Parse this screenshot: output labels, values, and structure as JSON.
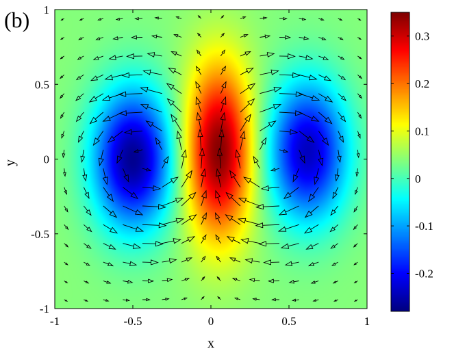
{
  "panel_label": "(b)",
  "chart_data": {
    "type": "heatmap",
    "overlay": "quiver",
    "title": "",
    "xlabel": "x",
    "ylabel": "y",
    "xlim": [
      -1,
      1
    ],
    "ylim": [
      -1,
      1
    ],
    "x_ticks": [
      -1,
      -0.5,
      0,
      0.5,
      1
    ],
    "x_tick_labels": [
      "-1",
      "-0.5",
      "0",
      "0.5",
      "1"
    ],
    "y_ticks": [
      1,
      0.5,
      0,
      -0.5,
      -1
    ],
    "y_tick_labels": [
      "1",
      "0.5",
      "0",
      "-0.5",
      "-1"
    ],
    "colorbar": {
      "colormap": "jet",
      "range": [
        -0.28,
        0.35
      ],
      "ticks": [
        0.3,
        0.2,
        0.1,
        0,
        -0.1,
        -0.2
      ],
      "tick_labels": [
        "0.3",
        "0.2",
        "0.1",
        "0",
        "-0.1",
        "-0.2"
      ]
    },
    "field_features": [
      {
        "kind": "max",
        "x": 0.05,
        "y": 0.05,
        "value": 0.35
      },
      {
        "kind": "min",
        "x": -0.5,
        "y": 0.0,
        "value": -0.27
      },
      {
        "kind": "min",
        "x": 0.62,
        "y": 0.05,
        "value": -0.24
      }
    ],
    "vortices": [
      {
        "x": -0.42,
        "y": 0.0,
        "rotation": "counterclockwise"
      },
      {
        "x": 0.42,
        "y": 0.0,
        "rotation": "clockwise"
      }
    ],
    "grid": false
  }
}
